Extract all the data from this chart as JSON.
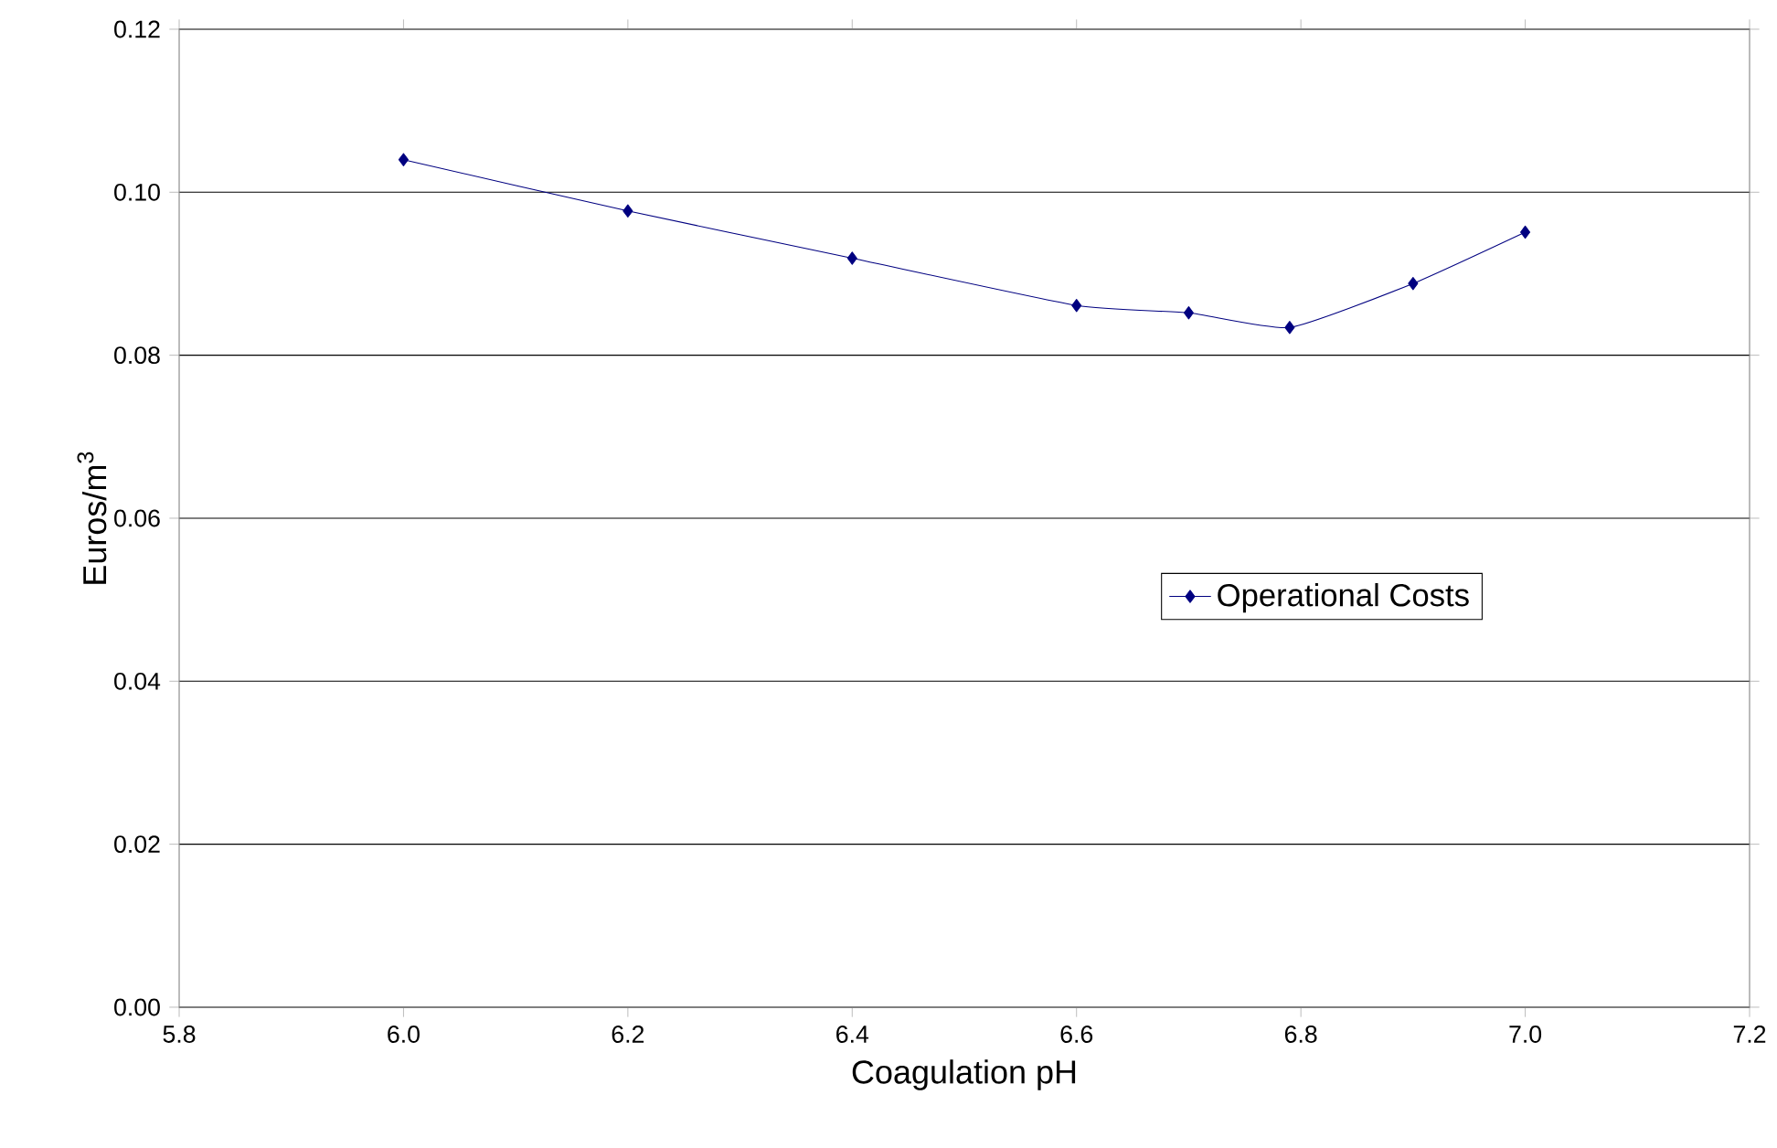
{
  "chart_data": {
    "type": "line",
    "xlabel": "Coagulation pH",
    "ylabel": "Euros/m$^{3}$",
    "series": [
      {
        "name": "Operational Costs",
        "color": "#000080",
        "x": [
          6.0,
          6.2,
          6.4,
          6.6,
          6.7,
          6.79,
          6.9,
          7.0
        ],
        "values": [
          0.104,
          0.0977,
          0.0919,
          0.0861,
          0.0852,
          0.0834,
          0.0888,
          0.0951
        ]
      }
    ],
    "xlim": [
      5.8,
      7.2
    ],
    "xticks": [
      {
        "value": 5.8,
        "label": "5.8"
      },
      {
        "value": 6.0,
        "label": "6.0"
      },
      {
        "value": 6.2,
        "label": "6.2"
      },
      {
        "value": 6.4,
        "label": "6.4"
      },
      {
        "value": 6.6,
        "label": "6.6"
      },
      {
        "value": 6.8,
        "label": "6.8"
      },
      {
        "value": 7.0,
        "label": "7.0"
      },
      {
        "value": 7.2,
        "label": "7.2"
      }
    ],
    "ylim": [
      0,
      0.12
    ],
    "yticks": [
      {
        "value": 0,
        "label": "0.00"
      },
      {
        "value": 0.02,
        "label": "0.02"
      },
      {
        "value": 0.04,
        "label": "0.04"
      },
      {
        "value": 0.06,
        "label": "0.06"
      },
      {
        "value": 0.08,
        "label": "0.08"
      },
      {
        "value": 0.1,
        "label": "0.10"
      },
      {
        "value": 0.12,
        "label": "0.12"
      }
    ],
    "grid": "y",
    "legend": "right",
    "marker": "diamond",
    "line_style": "solid"
  }
}
